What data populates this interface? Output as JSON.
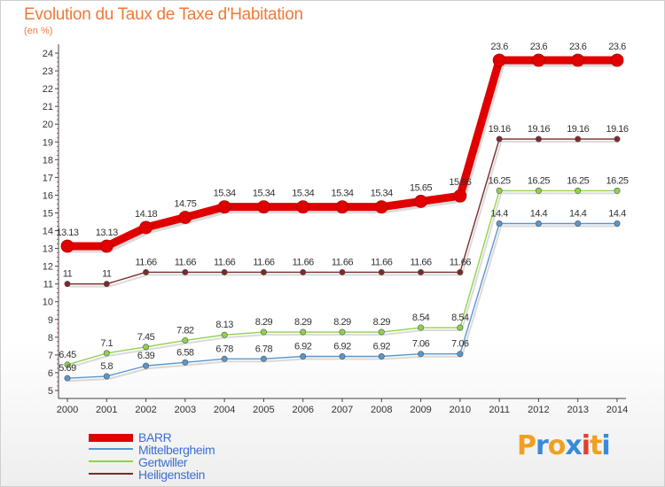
{
  "header": {
    "title": "Evolution du Taux de Taxe d'Habitation",
    "subtitle": "(en %)"
  },
  "brand": {
    "letters": [
      "P",
      "r",
      "o",
      "x",
      "i",
      "t",
      "i"
    ],
    "colors": [
      "#f0a020",
      "#3a8ad8",
      "#f0a020",
      "#3a8ad8",
      "#e04030",
      "#f0a020",
      "#3a8ad8"
    ]
  },
  "chart_data": {
    "type": "line",
    "title": "Evolution du Taux de Taxe d'Habitation",
    "ylabel": "(en %)",
    "xlabel": "",
    "x": [
      "2000",
      "2001",
      "2002",
      "2003",
      "2004",
      "2005",
      "2006",
      "2007",
      "2008",
      "2009",
      "2010",
      "2011",
      "2012",
      "2013",
      "2014"
    ],
    "yticks": [
      "5",
      "6",
      "7",
      "8",
      "9",
      "10",
      "11",
      "12",
      "13",
      "14",
      "15",
      "16",
      "17",
      "18",
      "19",
      "20",
      "21",
      "22",
      "23",
      "24"
    ],
    "ylim": [
      5,
      24
    ],
    "grid": false,
    "legend_position": "bottom-left",
    "series": [
      {
        "name": "BARR",
        "color": "#e00000",
        "values": [
          13.13,
          13.13,
          14.18,
          14.75,
          15.34,
          15.34,
          15.34,
          15.34,
          15.34,
          15.65,
          15.96,
          23.6,
          23.6,
          23.6,
          23.6
        ],
        "labels": [
          "13.13",
          "13.13",
          "14.18",
          "14.75",
          "15.34",
          "15.34",
          "15.34",
          "15.34",
          "15.34",
          "15.65",
          "15.96",
          "23.6",
          "23.6",
          "23.6",
          "23.6"
        ]
      },
      {
        "name": "Mittelbergheim",
        "color": "#5a96cc",
        "values": [
          5.69,
          5.8,
          6.39,
          6.58,
          6.78,
          6.78,
          6.92,
          6.92,
          6.92,
          7.06,
          7.06,
          14.4,
          14.4,
          14.4,
          14.4
        ],
        "labels": [
          "5.69",
          "5.8",
          "6.39",
          "6.58",
          "6.78",
          "6.78",
          "6.92",
          "6.92",
          "6.92",
          "7.06",
          "7.06",
          "14.4",
          "14.4",
          "14.4",
          "14.4"
        ]
      },
      {
        "name": "Gertwiller",
        "color": "#8fd24a",
        "values": [
          6.45,
          7.1,
          7.45,
          7.82,
          8.13,
          8.29,
          8.29,
          8.29,
          8.29,
          8.54,
          8.54,
          16.25,
          16.25,
          16.25,
          16.25
        ],
        "labels": [
          "6.45",
          "7.1",
          "7.45",
          "7.82",
          "8.13",
          "8.29",
          "8.29",
          "8.29",
          "8.29",
          "8.54",
          "8.54",
          "16.25",
          "16.25",
          "16.25",
          "16.25"
        ]
      },
      {
        "name": "Heiligenstein",
        "color": "#7a2a2a",
        "values": [
          11,
          11,
          11.66,
          11.66,
          11.66,
          11.66,
          11.66,
          11.66,
          11.66,
          11.66,
          11.66,
          19.16,
          19.16,
          19.16,
          19.16
        ],
        "labels": [
          "11",
          "11",
          "11.66",
          "11.66",
          "11.66",
          "11.66",
          "11.66",
          "11.66",
          "11.66",
          "11.66",
          "11.66",
          "19.16",
          "19.16",
          "19.16",
          "19.16"
        ]
      }
    ]
  }
}
